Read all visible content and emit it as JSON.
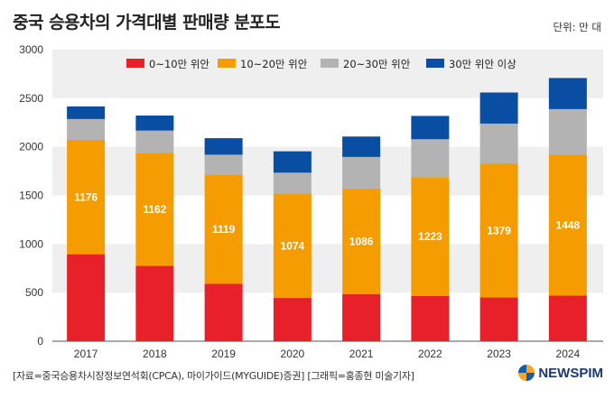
{
  "title": "중국 승용차의 가격대별 판매량 분포도",
  "unit": "단위: 만 대",
  "source": "[자료=중국승용차시장정보연석회(CPCA), 마이가이드(MYGUIDE)증권] [그래픽=홍종현 미술기자]",
  "brand": "NEWSPIM",
  "colors": {
    "s0": "#e8202a",
    "s1": "#f59c00",
    "s2": "#b3b3b3",
    "s3": "#0a4ea3",
    "band": "#efefef"
  },
  "chart_data": {
    "type": "bar",
    "stacked": true,
    "categories": [
      "2017",
      "2018",
      "2019",
      "2020",
      "2021",
      "2022",
      "2023",
      "2024"
    ],
    "ylim": [
      0,
      3000
    ],
    "yticks": [
      0,
      500,
      1000,
      1500,
      2000,
      2500,
      3000
    ],
    "legend_position": "top",
    "series": [
      {
        "name": "0~10만 위안",
        "values": [
          895,
          775,
          590,
          445,
          485,
          465,
          450,
          470
        ]
      },
      {
        "name": "10~20만 위안",
        "values": [
          1176,
          1162,
          1119,
          1074,
          1086,
          1223,
          1379,
          1448
        ],
        "labeled": true
      },
      {
        "name": "20~30만 위안",
        "values": [
          215,
          230,
          210,
          215,
          325,
          390,
          410,
          470
        ]
      },
      {
        "name": "30만 위안 이상",
        "values": [
          130,
          155,
          170,
          220,
          210,
          240,
          320,
          320
        ]
      }
    ]
  }
}
